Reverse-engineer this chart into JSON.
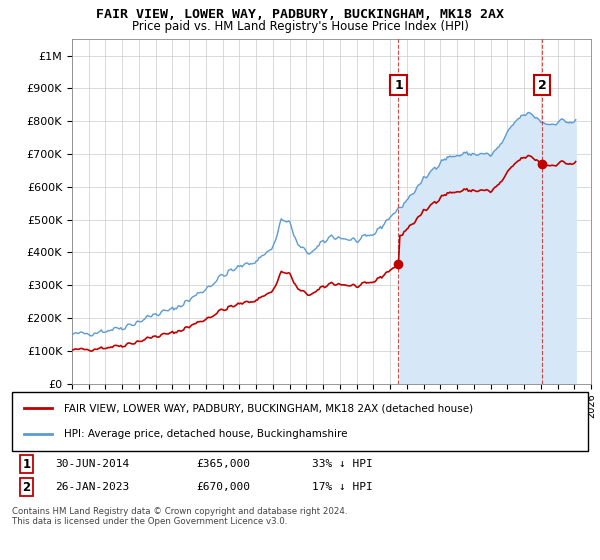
{
  "title": "FAIR VIEW, LOWER WAY, PADBURY, BUCKINGHAM, MK18 2AX",
  "subtitle": "Price paid vs. HM Land Registry's House Price Index (HPI)",
  "legend_line1": "FAIR VIEW, LOWER WAY, PADBURY, BUCKINGHAM, MK18 2AX (detached house)",
  "legend_line2": "HPI: Average price, detached house, Buckinghamshire",
  "footnote": "Contains HM Land Registry data © Crown copyright and database right 2024.\nThis data is licensed under the Open Government Licence v3.0.",
  "marker1_date": "30-JUN-2014",
  "marker1_price": "£365,000",
  "marker1_hpi": "33% ↓ HPI",
  "marker2_date": "26-JAN-2023",
  "marker2_price": "£670,000",
  "marker2_hpi": "17% ↓ HPI",
  "hpi_color": "#5b9bd5",
  "hpi_fill_color": "#d6e8f7",
  "price_color": "#c00000",
  "marker_box_color": "#c00000",
  "marker1_x": 2014.5,
  "marker1_y": 365000,
  "marker2_x": 2023.07,
  "marker2_y": 670000,
  "xmin": 1995,
  "xmax": 2026,
  "ymin": 0,
  "ymax": 1050000,
  "yticks": [
    0,
    100000,
    200000,
    300000,
    400000,
    500000,
    600000,
    700000,
    800000,
    900000,
    1000000
  ],
  "ytick_labels": [
    "£0",
    "£100K",
    "£200K",
    "£300K",
    "£400K",
    "£500K",
    "£600K",
    "£700K",
    "£800K",
    "£900K",
    "£1M"
  ]
}
